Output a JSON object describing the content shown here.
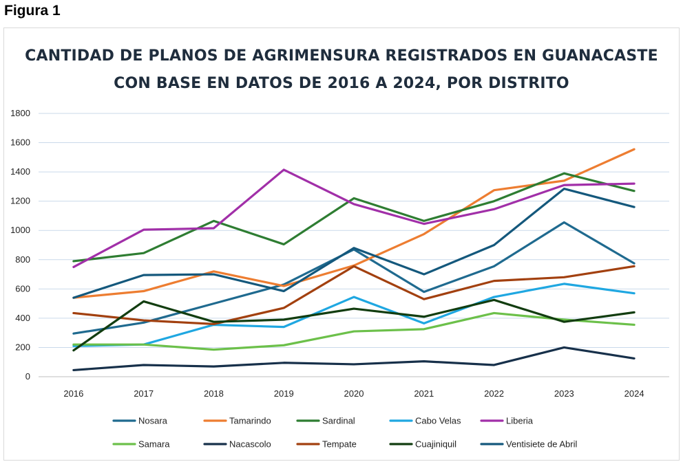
{
  "figure_label": "Figura 1",
  "chart_data": {
    "type": "line",
    "title": [
      "CANTIDAD DE PLANOS DE AGRIMENSURA REGISTRADOS EN GUANACASTE",
      "CON BASE EN DATOS DE 2016 A 2024, POR DISTRITO"
    ],
    "xlabel": "",
    "ylabel": "",
    "categories": [
      "2016",
      "2017",
      "2018",
      "2019",
      "2020",
      "2021",
      "2022",
      "2023",
      "2024"
    ],
    "ylim": [
      0,
      1800
    ],
    "yticks": [
      0,
      200,
      400,
      600,
      800,
      1000,
      1200,
      1400,
      1600,
      1800
    ],
    "grid": "horizontal",
    "legend_position": "bottom",
    "series": [
      {
        "name": "Nosara",
        "color": "#1f6a8f",
        "values": [
          295,
          370,
          500,
          630,
          870,
          580,
          755,
          1055,
          775
        ]
      },
      {
        "name": "Tamarindo",
        "color": "#ed7d31",
        "values": [
          540,
          585,
          720,
          620,
          760,
          975,
          1275,
          1340,
          1555
        ]
      },
      {
        "name": "Sardinal",
        "color": "#2e7d32",
        "values": [
          790,
          845,
          1065,
          905,
          1220,
          1065,
          1200,
          1390,
          1270
        ]
      },
      {
        "name": "Cabo Velas",
        "color": "#1fa7e1",
        "values": [
          210,
          220,
          355,
          340,
          545,
          365,
          545,
          635,
          570
        ]
      },
      {
        "name": "Liberia",
        "color": "#a12fa8",
        "values": [
          750,
          1005,
          1015,
          1415,
          1180,
          1045,
          1145,
          1310,
          1320
        ]
      },
      {
        "name": "Samara",
        "color": "#6cc04a",
        "values": [
          220,
          220,
          185,
          215,
          310,
          325,
          435,
          390,
          355
        ]
      },
      {
        "name": "Nacascolo",
        "color": "#17304a",
        "values": [
          45,
          80,
          70,
          95,
          85,
          105,
          80,
          200,
          125
        ]
      },
      {
        "name": "Tempate",
        "color": "#a2400f",
        "values": [
          435,
          385,
          360,
          470,
          755,
          530,
          655,
          680,
          755
        ]
      },
      {
        "name": "Cuajiniquil",
        "color": "#123d10",
        "values": [
          180,
          515,
          375,
          390,
          465,
          410,
          525,
          375,
          440
        ]
      },
      {
        "name": "Ventisiete de Abril",
        "color": "#14587c",
        "values": [
          540,
          695,
          700,
          585,
          880,
          700,
          900,
          1285,
          1160
        ]
      }
    ]
  }
}
